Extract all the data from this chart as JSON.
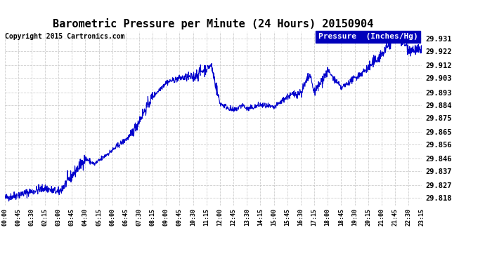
{
  "title": "Barometric Pressure per Minute (24 Hours) 20150904",
  "copyright": "Copyright 2015 Cartronics.com",
  "legend_label": "Pressure  (Inches/Hg)",
  "legend_bg": "#0000bb",
  "legend_text_color": "#ffffff",
  "line_color": "#0000cc",
  "background_color": "#ffffff",
  "grid_color": "#c8c8c8",
  "title_fontsize": 11,
  "copyright_fontsize": 7,
  "ytick_fontsize": 7.5,
  "xtick_fontsize": 6,
  "yticks": [
    29.818,
    29.827,
    29.837,
    29.846,
    29.856,
    29.865,
    29.875,
    29.884,
    29.893,
    29.903,
    29.912,
    29.922,
    29.931
  ],
  "ylim": [
    29.813,
    29.936
  ],
  "xtick_labels": [
    "00:00",
    "00:45",
    "01:30",
    "02:15",
    "03:00",
    "03:45",
    "04:30",
    "05:15",
    "06:00",
    "06:45",
    "07:30",
    "08:15",
    "09:00",
    "09:45",
    "10:30",
    "11:15",
    "12:00",
    "12:45",
    "13:30",
    "14:15",
    "15:00",
    "15:45",
    "16:30",
    "17:15",
    "18:00",
    "18:45",
    "19:30",
    "20:15",
    "21:00",
    "21:45",
    "22:30",
    "23:15"
  ]
}
